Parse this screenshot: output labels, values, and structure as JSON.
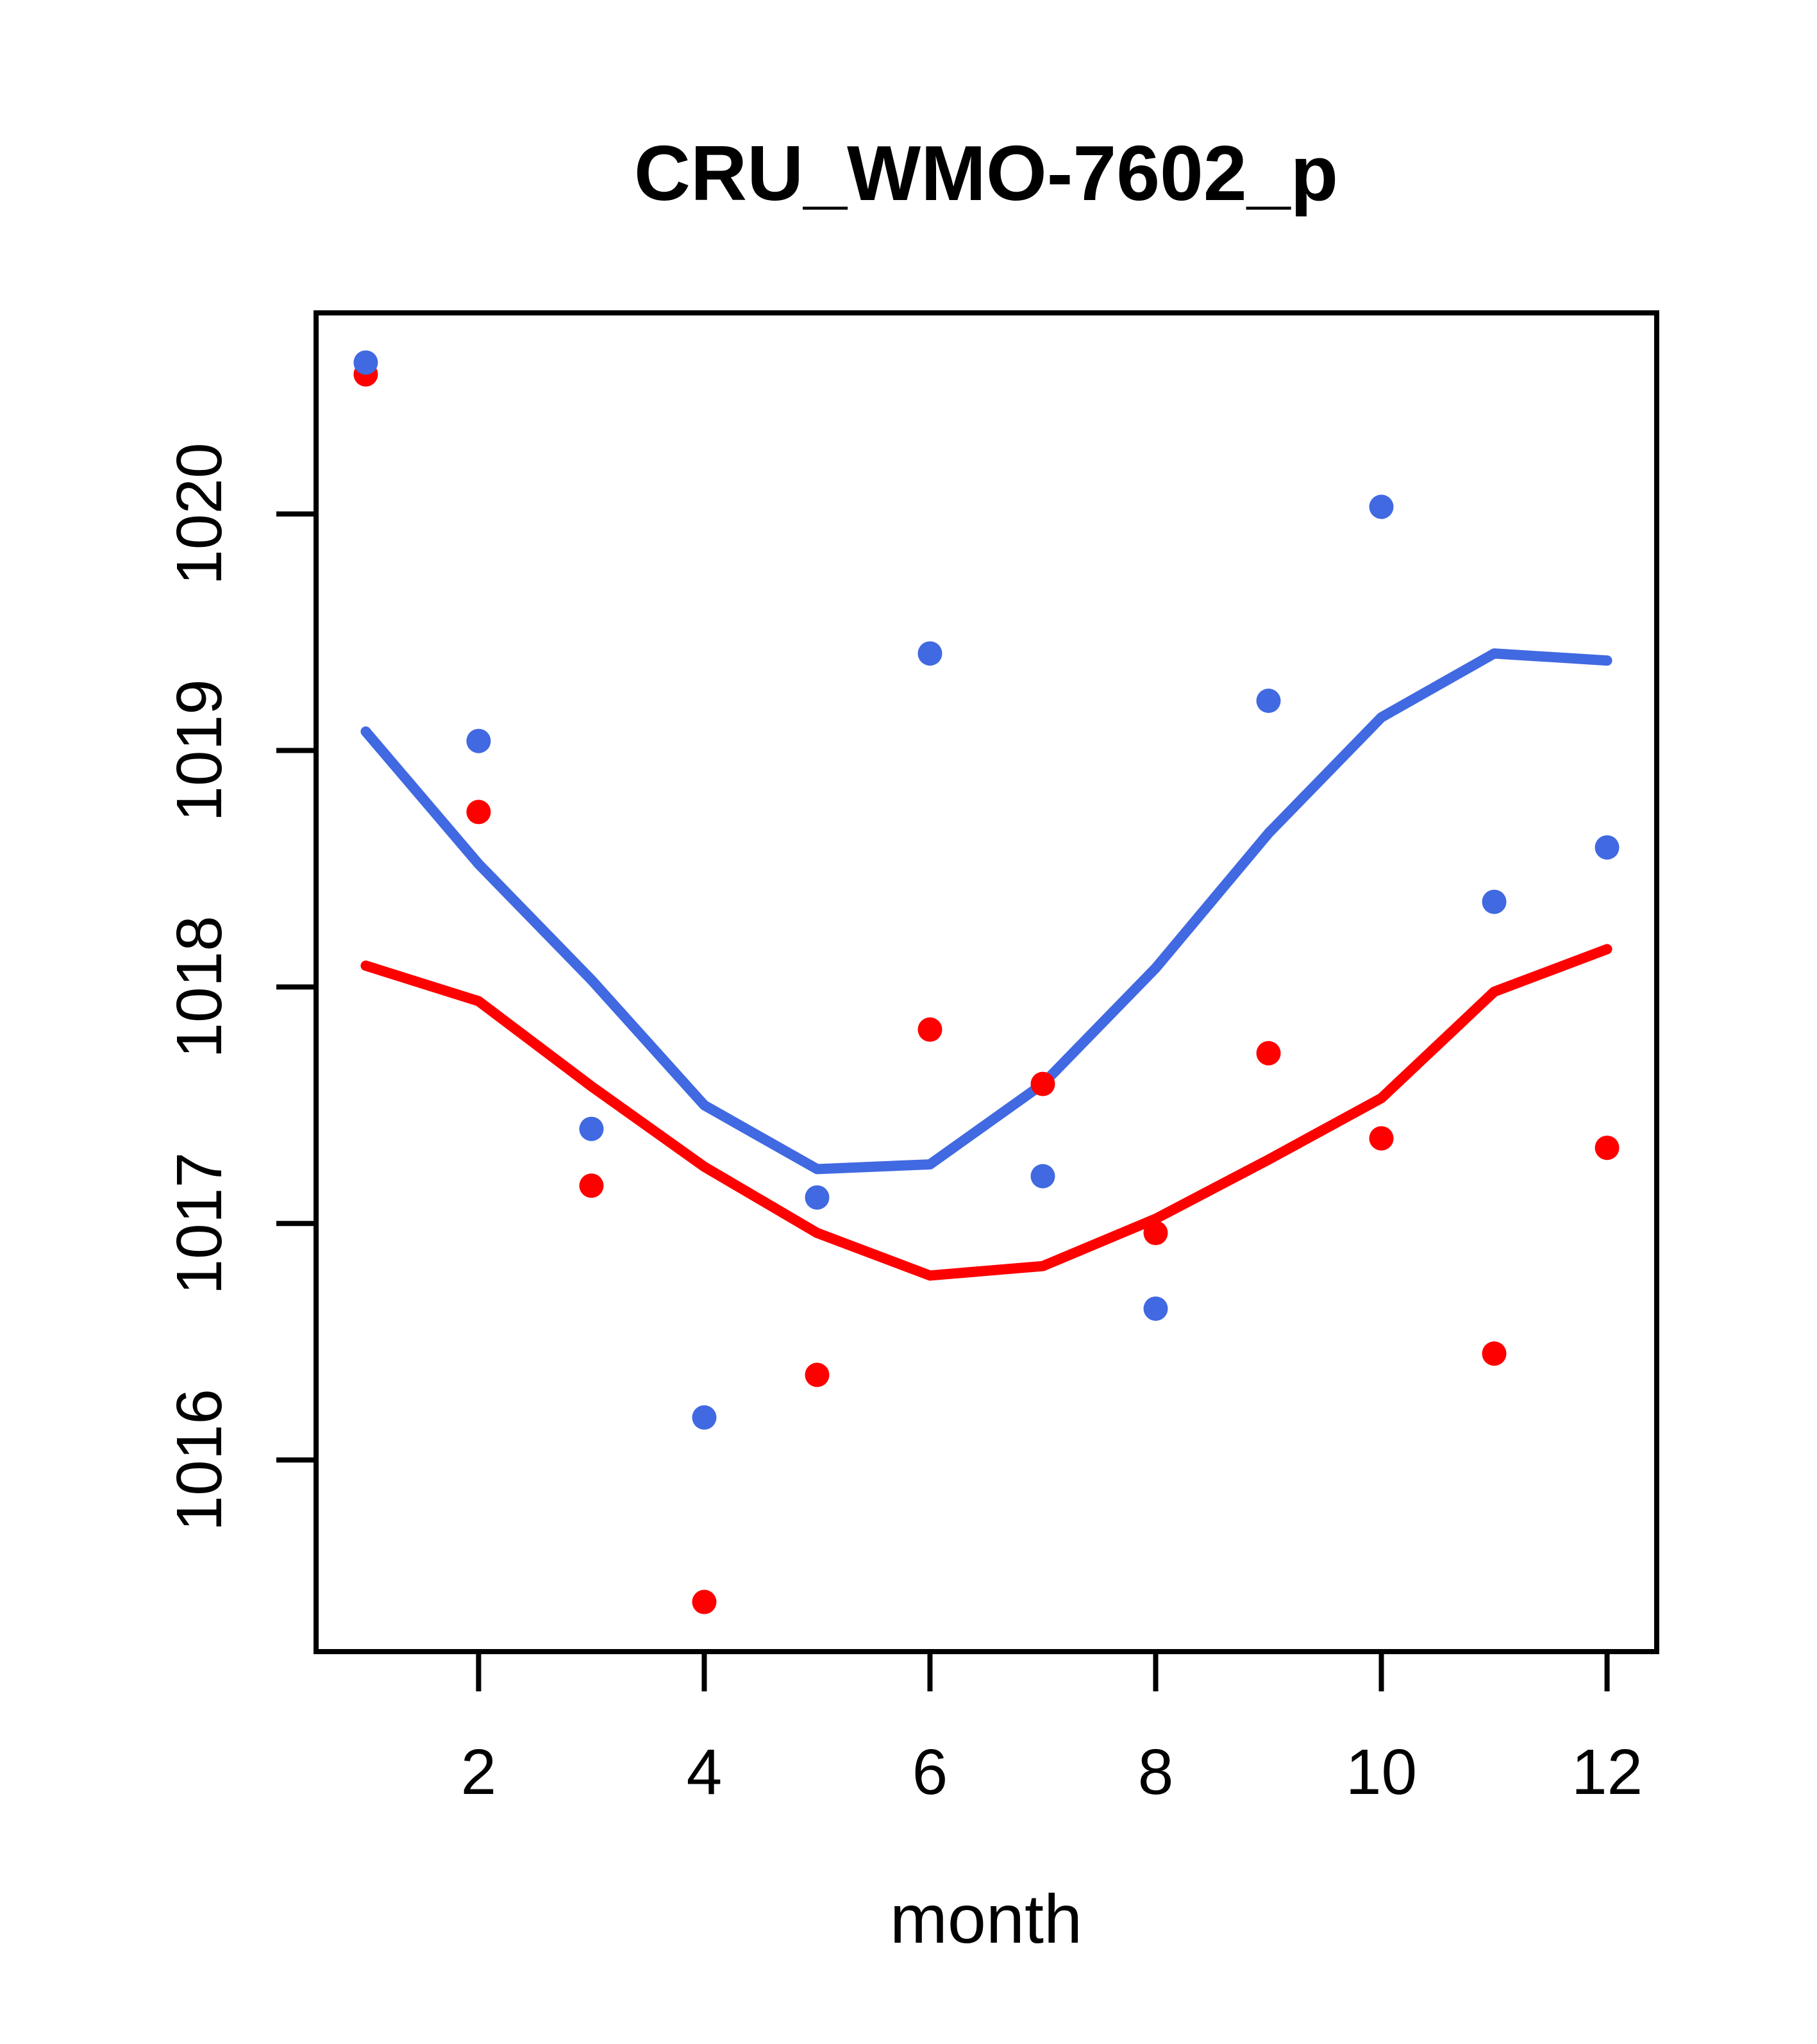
{
  "figure": {
    "title": "CRU_WMO-7602_p",
    "xlabel": "month"
  },
  "colors": {
    "series_blue": "#4169E1",
    "series_red": "#FF0000",
    "axis": "#000000",
    "background": "#FFFFFF"
  },
  "chart_data": {
    "type": "scatter",
    "title": "CRU_WMO-7602_p",
    "xlabel": "month",
    "ylabel": "",
    "x": [
      1,
      2,
      3,
      4,
      5,
      6,
      7,
      8,
      9,
      10,
      11,
      12
    ],
    "xlim": [
      0.56,
      12.44
    ],
    "ylim": [
      1015.19,
      1020.85
    ],
    "xticks": [
      2,
      4,
      6,
      8,
      10,
      12
    ],
    "xtick_labels": [
      "2",
      "4",
      "6",
      "8",
      "10",
      "12"
    ],
    "yticks": [
      1016,
      1017,
      1018,
      1019,
      1020
    ],
    "ytick_labels": [
      "1016",
      "1017",
      "1018",
      "1019",
      "1020"
    ],
    "grid": false,
    "legend": "none",
    "series": [
      {
        "name": "blue-smooth-line",
        "type": "line",
        "color": "#4169E1",
        "values": [
          1019.08,
          1018.52,
          1018.03,
          1017.5,
          1017.23,
          1017.25,
          1017.59,
          1018.08,
          1018.65,
          1019.14,
          1019.41,
          1019.38
        ]
      },
      {
        "name": "red-smooth-line",
        "type": "line",
        "color": "#FF0000",
        "values": [
          1018.09,
          1017.94,
          1017.58,
          1017.24,
          1016.96,
          1016.78,
          1016.82,
          1017.02,
          1017.27,
          1017.53,
          1017.98,
          1018.16
        ]
      },
      {
        "name": "red-points",
        "type": "points",
        "color": "#FF0000",
        "values": [
          1020.59,
          1018.74,
          1017.16,
          1015.4,
          1016.36,
          1017.82,
          1017.59,
          1016.96,
          1017.72,
          1017.36,
          1016.45,
          1017.32
        ]
      },
      {
        "name": "blue-points",
        "type": "points",
        "color": "#4169E1",
        "values": [
          1020.64,
          1019.04,
          1017.4,
          1016.18,
          1017.11,
          1019.41,
          1017.2,
          1016.64,
          1019.21,
          1020.03,
          1018.36,
          1018.59
        ]
      }
    ]
  }
}
